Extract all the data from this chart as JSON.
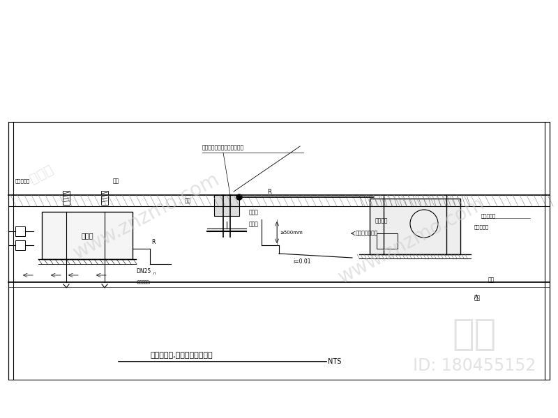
{
  "title": "屋面室内机,室外机安装示意图",
  "scale_label": "NTS",
  "bg_color": "#ffffff",
  "line_color": "#000000",
  "watermark_color": "#cccccc",
  "fig_width": 8.0,
  "fig_height": 6.0,
  "labels": {
    "pipe_seal": "管道安装以后用防水材料塞实",
    "block": "挡雨板",
    "pipe_well": "管道井",
    "roof": "屋面",
    "damper": "弹簧减震器",
    "hanger": "吊杆",
    "indoor_unit": "室内机",
    "outdoor_unit": "室外机组",
    "rubber_pad": "橡皮减振垫",
    "concrete_base": "混凝土基础",
    "condensate": "接冷凝水收集管",
    "dn25": "DN25",
    "ceiling": "吊顶",
    "indoor": "室内",
    "slope": "i=0.01",
    "height": "≥500mm",
    "R": "R",
    "hanger_label": "吊杆",
    "damper_label": "弹簧减震器"
  },
  "znzmo_watermark": "www.znzmo.com",
  "zhimo_text": "知末",
  "id_text": "ID: 180455152"
}
